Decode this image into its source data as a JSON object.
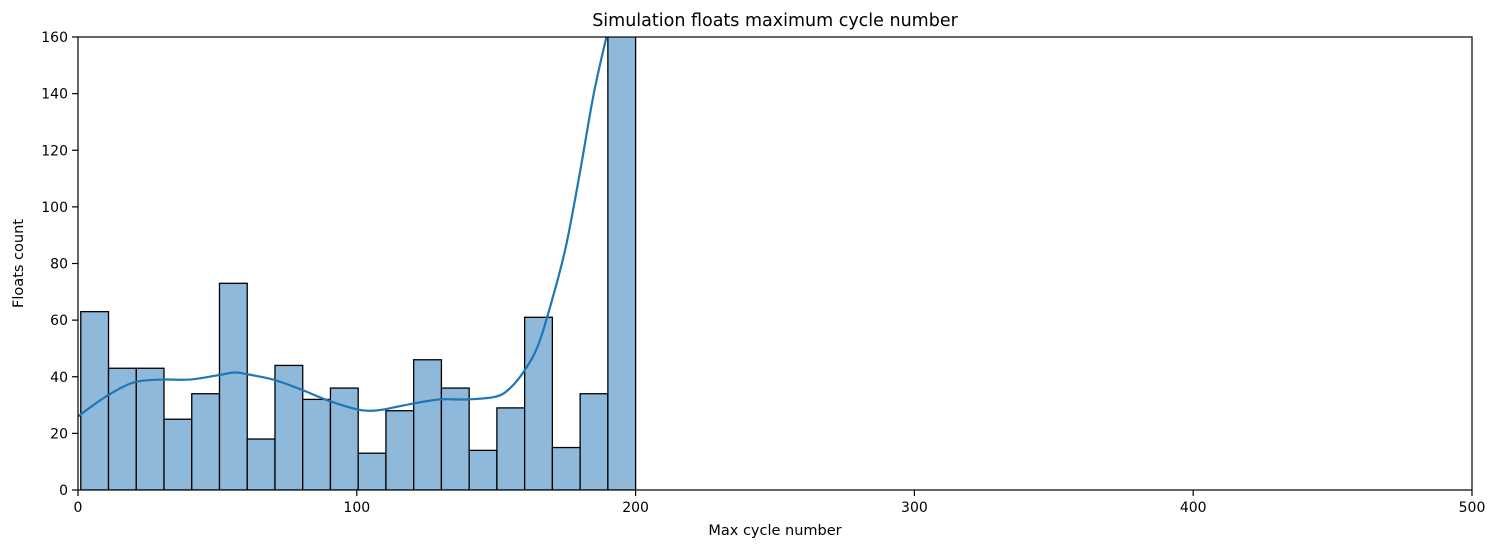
{
  "chart_data": {
    "type": "bar",
    "title": "Simulation floats maximum cycle number",
    "xlabel": "Max cycle number",
    "ylabel": "Floats count",
    "xlim": [
      0,
      500
    ],
    "ylim": [
      0,
      160
    ],
    "xticks": [
      0,
      100,
      200,
      300,
      400,
      500
    ],
    "yticks": [
      0,
      20,
      40,
      60,
      80,
      100,
      120,
      140,
      160
    ],
    "grid": false,
    "bin_edges": [
      1,
      10.95,
      20.9,
      30.85,
      40.8,
      50.75,
      60.7,
      70.65,
      80.6,
      90.55,
      100.5,
      110.45,
      120.4,
      130.35,
      140.3,
      150.25,
      160.2,
      170.15,
      180.1,
      190.05,
      200
    ],
    "counts": [
      63,
      43,
      43,
      25,
      34,
      73,
      18,
      44,
      32,
      36,
      13,
      28,
      46,
      36,
      14,
      29,
      61,
      15,
      34,
      170
    ],
    "kde_line": {
      "x": [
        0,
        10,
        20,
        30,
        40,
        50,
        56,
        60,
        70,
        80,
        90,
        100,
        105,
        110,
        120,
        130,
        140,
        150,
        155,
        160,
        165,
        170,
        175,
        180,
        185,
        190,
        192
      ],
      "y": [
        26,
        33,
        38,
        39,
        39,
        40.5,
        41.5,
        41,
        39,
        35.5,
        31.5,
        28.5,
        28,
        28.5,
        30.5,
        32,
        32,
        33,
        36,
        42,
        51,
        67,
        86,
        112,
        140,
        162,
        170
      ]
    },
    "colors": {
      "bar_fill": "#8fb9da",
      "bar_edge": "#000000",
      "kde_line": "#1f77b4",
      "axes": "#000000"
    }
  }
}
